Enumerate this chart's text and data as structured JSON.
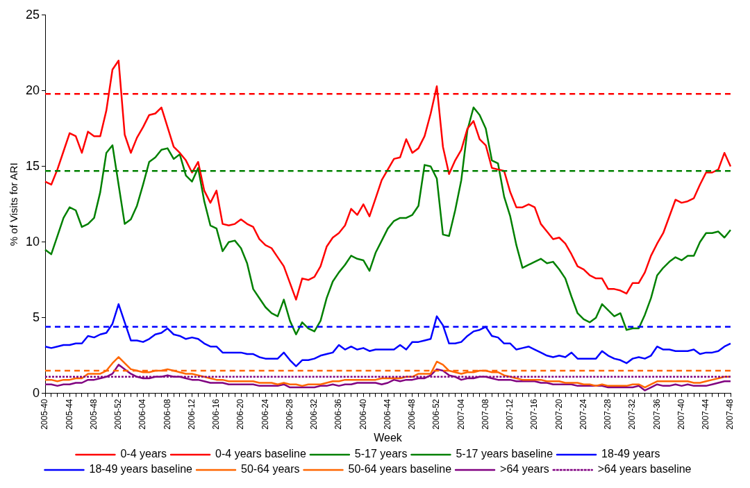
{
  "chart_data": {
    "type": "line",
    "xlabel": "Week",
    "ylabel": "% of Visits for ARI",
    "categories": [
      "2005-40",
      null,
      null,
      null,
      "2005-44",
      null,
      null,
      null,
      "2005-48",
      null,
      null,
      null,
      "2005-52",
      null,
      null,
      null,
      "2006-04",
      null,
      null,
      null,
      "2006-08",
      null,
      null,
      null,
      "2006-12",
      null,
      null,
      null,
      "2006-16",
      null,
      null,
      null,
      "2006-20",
      null,
      null,
      null,
      "2006-24",
      null,
      null,
      null,
      "2006-28",
      null,
      null,
      null,
      "2006-32",
      null,
      null,
      null,
      "2006-36",
      null,
      null,
      null,
      "2006-40",
      null,
      null,
      null,
      "2006-44",
      null,
      null,
      null,
      "2006-48",
      null,
      null,
      null,
      "2006-52",
      null,
      null,
      null,
      "2007-04",
      null,
      null,
      null,
      "2007-08",
      null,
      null,
      null,
      "2007-12",
      null,
      null,
      null,
      "2007-16",
      null,
      null,
      null,
      "2007-20",
      null,
      null,
      null,
      "2007-24",
      null,
      null,
      null,
      "2007-28",
      null,
      null,
      null,
      "2007-32",
      null,
      null,
      null,
      "2007-36",
      null,
      null,
      null,
      "2007-40",
      null,
      null,
      null,
      "2007-44",
      null,
      null,
      null,
      "2007-48"
    ],
    "ylim": [
      0,
      25
    ],
    "yticks": [
      0,
      5,
      10,
      15,
      20,
      25
    ],
    "grid": false,
    "legend": "bottom",
    "marker": "none",
    "series": [
      {
        "name": "0-4 years",
        "color": "#ff0000",
        "line_style": "solid",
        "values": [
          14.0,
          13.8,
          14.8,
          16.0,
          17.2,
          17.0,
          15.9,
          17.3,
          17.0,
          17.0,
          18.7,
          21.4,
          22.0,
          17.1,
          15.9,
          16.9,
          17.6,
          18.4,
          18.5,
          18.9,
          17.6,
          16.3,
          15.9,
          15.4,
          14.6,
          15.3,
          13.4,
          12.6,
          13.4,
          11.2,
          11.1,
          11.2,
          11.5,
          11.2,
          11.0,
          10.2,
          9.8,
          9.6,
          9.0,
          8.4,
          7.3,
          6.2,
          7.6,
          7.5,
          7.7,
          8.4,
          9.7,
          10.3,
          10.6,
          11.1,
          12.2,
          11.8,
          12.5,
          11.7,
          12.9,
          14.1,
          14.8,
          15.5,
          15.6,
          16.8,
          15.9,
          16.2,
          17.0,
          18.5,
          20.3,
          16.3,
          14.5,
          15.4,
          16.1,
          17.5,
          18.0,
          16.8,
          16.4,
          14.9,
          14.8,
          14.7,
          13.3,
          12.3,
          12.3,
          12.5,
          12.3,
          11.2,
          10.7,
          10.2,
          10.3,
          9.9,
          9.2,
          8.4,
          8.2,
          7.8,
          7.6,
          7.6,
          6.9,
          6.9,
          6.8,
          6.6,
          7.3,
          7.3,
          8.0,
          9.1,
          9.9,
          10.6,
          11.7,
          12.8,
          12.6,
          12.7,
          12.9,
          13.8,
          14.6,
          14.6,
          14.8,
          15.9,
          15.0
        ]
      },
      {
        "name": "0-4 years baseline",
        "color": "#ff0000",
        "line_style": "dashed",
        "values": [
          19.8,
          19.8,
          19.8,
          19.8,
          19.8,
          19.8,
          19.8,
          19.8,
          19.8,
          19.8,
          19.8,
          19.8,
          19.8,
          19.8,
          19.8,
          19.8,
          19.8,
          19.8,
          19.8,
          19.8,
          19.8,
          19.8,
          19.8,
          19.8,
          19.8,
          19.8,
          19.8,
          19.8,
          19.8,
          19.8,
          19.8,
          19.8,
          19.8,
          19.8,
          19.8,
          19.8,
          19.8,
          19.8,
          19.8,
          19.8,
          19.8,
          19.8,
          19.8,
          19.8,
          19.8,
          19.8,
          19.8,
          19.8,
          19.8,
          19.8,
          19.8,
          19.8,
          19.8,
          19.8,
          19.8,
          19.8,
          19.8,
          19.8,
          19.8,
          19.8,
          19.8,
          19.8,
          19.8,
          19.8,
          19.8,
          19.8,
          19.8,
          19.8,
          19.8,
          19.8,
          19.8,
          19.8,
          19.8,
          19.8,
          19.8,
          19.8,
          19.8,
          19.8,
          19.8,
          19.8,
          19.8,
          19.8,
          19.8,
          19.8,
          19.8,
          19.8,
          19.8,
          19.8,
          19.8,
          19.8,
          19.8,
          19.8,
          19.8,
          19.8,
          19.8,
          19.8,
          19.8,
          19.8,
          19.8,
          19.8,
          19.8,
          19.8,
          19.8,
          19.8,
          19.8,
          19.8,
          19.8,
          19.8,
          19.8,
          19.8,
          19.8,
          19.8,
          19.8
        ]
      },
      {
        "name": "5-17 years",
        "color": "#008000",
        "line_style": "solid",
        "values": [
          9.5,
          9.2,
          10.4,
          11.6,
          12.3,
          12.1,
          11.0,
          11.2,
          11.6,
          13.3,
          15.9,
          16.4,
          13.8,
          11.2,
          11.5,
          12.4,
          13.8,
          15.3,
          15.6,
          16.1,
          16.2,
          15.5,
          15.8,
          14.4,
          14.0,
          14.9,
          12.7,
          11.1,
          10.9,
          9.4,
          10.0,
          10.1,
          9.6,
          8.6,
          6.9,
          6.3,
          5.7,
          5.3,
          5.1,
          6.2,
          4.8,
          3.9,
          4.7,
          4.3,
          4.1,
          4.8,
          6.3,
          7.4,
          8.0,
          8.5,
          9.1,
          8.9,
          8.8,
          8.1,
          9.3,
          10.1,
          10.9,
          11.4,
          11.6,
          11.6,
          11.8,
          12.4,
          15.1,
          15.0,
          14.2,
          10.5,
          10.4,
          12.1,
          14.1,
          17.4,
          18.9,
          18.4,
          17.5,
          15.4,
          15.2,
          13.0,
          11.7,
          9.8,
          8.3,
          8.5,
          8.7,
          8.9,
          8.6,
          8.7,
          8.2,
          7.6,
          6.4,
          5.3,
          4.9,
          4.7,
          5.0,
          5.9,
          5.5,
          5.1,
          5.3,
          4.2,
          4.3,
          4.3,
          5.2,
          6.3,
          7.8,
          8.3,
          8.7,
          9.0,
          8.8,
          9.1,
          9.1,
          10.0,
          10.6,
          10.6,
          10.7,
          10.3,
          10.8
        ]
      },
      {
        "name": "5-17 years baseline",
        "color": "#008000",
        "line_style": "dashed",
        "values": [
          14.7,
          14.7,
          14.7,
          14.7,
          14.7,
          14.7,
          14.7,
          14.7,
          14.7,
          14.7,
          14.7,
          14.7,
          14.7,
          14.7,
          14.7,
          14.7,
          14.7,
          14.7,
          14.7,
          14.7,
          14.7,
          14.7,
          14.7,
          14.7,
          14.7,
          14.7,
          14.7,
          14.7,
          14.7,
          14.7,
          14.7,
          14.7,
          14.7,
          14.7,
          14.7,
          14.7,
          14.7,
          14.7,
          14.7,
          14.7,
          14.7,
          14.7,
          14.7,
          14.7,
          14.7,
          14.7,
          14.7,
          14.7,
          14.7,
          14.7,
          14.7,
          14.7,
          14.7,
          14.7,
          14.7,
          14.7,
          14.7,
          14.7,
          14.7,
          14.7,
          14.7,
          14.7,
          14.7,
          14.7,
          14.7,
          14.7,
          14.7,
          14.7,
          14.7,
          14.7,
          14.7,
          14.7,
          14.7,
          14.7,
          14.7,
          14.7,
          14.7,
          14.7,
          14.7,
          14.7,
          14.7,
          14.7,
          14.7,
          14.7,
          14.7,
          14.7,
          14.7,
          14.7,
          14.7,
          14.7,
          14.7,
          14.7,
          14.7,
          14.7,
          14.7,
          14.7,
          14.7,
          14.7,
          14.7,
          14.7,
          14.7,
          14.7,
          14.7,
          14.7,
          14.7,
          14.7,
          14.7,
          14.7,
          14.7,
          14.7,
          14.7,
          14.7,
          14.7
        ]
      },
      {
        "name": "18-49 years",
        "color": "#0000ff",
        "line_style": "solid",
        "values": [
          3.1,
          3.0,
          3.1,
          3.2,
          3.2,
          3.3,
          3.3,
          3.8,
          3.7,
          3.9,
          4.0,
          4.6,
          5.9,
          4.7,
          3.5,
          3.5,
          3.4,
          3.6,
          3.9,
          4.0,
          4.3,
          3.9,
          3.8,
          3.6,
          3.7,
          3.6,
          3.3,
          3.1,
          3.1,
          2.7,
          2.7,
          2.7,
          2.7,
          2.6,
          2.6,
          2.4,
          2.3,
          2.3,
          2.3,
          2.7,
          2.2,
          1.8,
          2.2,
          2.2,
          2.3,
          2.5,
          2.6,
          2.7,
          3.2,
          2.9,
          3.1,
          2.9,
          3.0,
          2.8,
          2.9,
          2.9,
          2.9,
          2.9,
          3.2,
          2.9,
          3.4,
          3.4,
          3.5,
          3.6,
          5.1,
          4.5,
          3.3,
          3.3,
          3.4,
          3.8,
          4.1,
          4.2,
          4.4,
          3.8,
          3.7,
          3.3,
          3.3,
          2.9,
          3.0,
          3.1,
          2.9,
          2.7,
          2.5,
          2.4,
          2.5,
          2.4,
          2.7,
          2.3,
          2.3,
          2.3,
          2.3,
          2.8,
          2.5,
          2.3,
          2.2,
          2.0,
          2.3,
          2.4,
          2.3,
          2.5,
          3.1,
          2.9,
          2.9,
          2.8,
          2.8,
          2.8,
          2.9,
          2.6,
          2.7,
          2.7,
          2.8,
          3.1,
          3.3
        ]
      },
      {
        "name": "18-49 years baseline",
        "color": "#0000ff",
        "line_style": "dashed",
        "values": [
          4.4,
          4.4,
          4.4,
          4.4,
          4.4,
          4.4,
          4.4,
          4.4,
          4.4,
          4.4,
          4.4,
          4.4,
          4.4,
          4.4,
          4.4,
          4.4,
          4.4,
          4.4,
          4.4,
          4.4,
          4.4,
          4.4,
          4.4,
          4.4,
          4.4,
          4.4,
          4.4,
          4.4,
          4.4,
          4.4,
          4.4,
          4.4,
          4.4,
          4.4,
          4.4,
          4.4,
          4.4,
          4.4,
          4.4,
          4.4,
          4.4,
          4.4,
          4.4,
          4.4,
          4.4,
          4.4,
          4.4,
          4.4,
          4.4,
          4.4,
          4.4,
          4.4,
          4.4,
          4.4,
          4.4,
          4.4,
          4.4,
          4.4,
          4.4,
          4.4,
          4.4,
          4.4,
          4.4,
          4.4,
          4.4,
          4.4,
          4.4,
          4.4,
          4.4,
          4.4,
          4.4,
          4.4,
          4.4,
          4.4,
          4.4,
          4.4,
          4.4,
          4.4,
          4.4,
          4.4,
          4.4,
          4.4,
          4.4,
          4.4,
          4.4,
          4.4,
          4.4,
          4.4,
          4.4,
          4.4,
          4.4,
          4.4,
          4.4,
          4.4,
          4.4,
          4.4,
          4.4,
          4.4,
          4.4,
          4.4,
          4.4,
          4.4,
          4.4,
          4.4,
          4.4,
          4.4,
          4.4,
          4.4,
          4.4,
          4.4,
          4.4,
          4.4,
          4.4
        ]
      },
      {
        "name": "50-64 years",
        "color": "#ff6600",
        "line_style": "solid",
        "values": [
          0.9,
          0.9,
          0.8,
          0.9,
          0.9,
          1.0,
          1.0,
          1.3,
          1.3,
          1.3,
          1.5,
          2.0,
          2.4,
          2.0,
          1.6,
          1.5,
          1.4,
          1.4,
          1.5,
          1.5,
          1.6,
          1.5,
          1.4,
          1.3,
          1.3,
          1.2,
          1.1,
          1.0,
          0.9,
          0.9,
          0.8,
          0.8,
          0.8,
          0.8,
          0.8,
          0.7,
          0.7,
          0.7,
          0.6,
          0.7,
          0.6,
          0.6,
          0.5,
          0.6,
          0.6,
          0.6,
          0.7,
          0.8,
          0.8,
          0.9,
          0.9,
          0.9,
          0.9,
          0.9,
          0.9,
          1.0,
          1.0,
          1.0,
          1.0,
          1.1,
          1.1,
          1.3,
          1.3,
          1.3,
          2.1,
          1.9,
          1.5,
          1.4,
          1.3,
          1.4,
          1.4,
          1.5,
          1.5,
          1.4,
          1.4,
          1.2,
          1.1,
          1.0,
          0.9,
          0.9,
          0.9,
          0.9,
          0.8,
          0.8,
          0.8,
          0.7,
          0.7,
          0.7,
          0.6,
          0.6,
          0.5,
          0.6,
          0.5,
          0.5,
          0.5,
          0.5,
          0.6,
          0.6,
          0.4,
          0.6,
          0.8,
          0.8,
          0.8,
          0.8,
          0.8,
          0.8,
          0.7,
          0.7,
          0.8,
          0.9,
          1.0,
          1.1,
          1.1
        ]
      },
      {
        "name": "50-64 years baseline",
        "color": "#ff6600",
        "line_style": "dashed",
        "values": [
          1.5,
          1.5,
          1.5,
          1.5,
          1.5,
          1.5,
          1.5,
          1.5,
          1.5,
          1.5,
          1.5,
          1.5,
          1.5,
          1.5,
          1.5,
          1.5,
          1.5,
          1.5,
          1.5,
          1.5,
          1.5,
          1.5,
          1.5,
          1.5,
          1.5,
          1.5,
          1.5,
          1.5,
          1.5,
          1.5,
          1.5,
          1.5,
          1.5,
          1.5,
          1.5,
          1.5,
          1.5,
          1.5,
          1.5,
          1.5,
          1.5,
          1.5,
          1.5,
          1.5,
          1.5,
          1.5,
          1.5,
          1.5,
          1.5,
          1.5,
          1.5,
          1.5,
          1.5,
          1.5,
          1.5,
          1.5,
          1.5,
          1.5,
          1.5,
          1.5,
          1.5,
          1.5,
          1.5,
          1.5,
          1.5,
          1.5,
          1.5,
          1.5,
          1.5,
          1.5,
          1.5,
          1.5,
          1.5,
          1.5,
          1.5,
          1.5,
          1.5,
          1.5,
          1.5,
          1.5,
          1.5,
          1.5,
          1.5,
          1.5,
          1.5,
          1.5,
          1.5,
          1.5,
          1.5,
          1.5,
          1.5,
          1.5,
          1.5,
          1.5,
          1.5,
          1.5,
          1.5,
          1.5,
          1.5,
          1.5,
          1.5,
          1.5,
          1.5,
          1.5,
          1.5,
          1.5,
          1.5,
          1.5,
          1.5,
          1.5,
          1.5,
          1.5,
          1.5
        ]
      },
      {
        "name": ">64 years",
        "color": "#800080",
        "line_style": "solid",
        "values": [
          0.6,
          0.6,
          0.5,
          0.6,
          0.6,
          0.7,
          0.7,
          0.9,
          0.9,
          1.0,
          1.1,
          1.3,
          1.9,
          1.6,
          1.3,
          1.1,
          1.0,
          1.0,
          1.1,
          1.1,
          1.2,
          1.1,
          1.1,
          1.0,
          0.9,
          0.9,
          0.8,
          0.7,
          0.7,
          0.7,
          0.6,
          0.6,
          0.6,
          0.6,
          0.6,
          0.5,
          0.5,
          0.5,
          0.5,
          0.6,
          0.4,
          0.4,
          0.4,
          0.4,
          0.4,
          0.5,
          0.5,
          0.6,
          0.5,
          0.6,
          0.6,
          0.7,
          0.7,
          0.7,
          0.7,
          0.6,
          0.7,
          0.9,
          0.8,
          0.9,
          0.9,
          1.0,
          1.0,
          1.2,
          1.6,
          1.5,
          1.2,
          1.1,
          0.9,
          1.0,
          1.0,
          1.1,
          1.1,
          1.0,
          0.9,
          0.9,
          0.9,
          0.8,
          0.8,
          0.8,
          0.8,
          0.7,
          0.7,
          0.6,
          0.6,
          0.6,
          0.6,
          0.5,
          0.5,
          0.5,
          0.5,
          0.5,
          0.4,
          0.4,
          0.4,
          0.4,
          0.4,
          0.5,
          0.2,
          0.4,
          0.6,
          0.5,
          0.5,
          0.6,
          0.5,
          0.6,
          0.5,
          0.5,
          0.5,
          0.6,
          0.7,
          0.8,
          0.8
        ]
      },
      {
        "name": ">64 years baseline",
        "color": "#800080",
        "line_style": "dotted",
        "values": [
          1.1,
          1.1,
          1.1,
          1.1,
          1.1,
          1.1,
          1.1,
          1.1,
          1.1,
          1.1,
          1.1,
          1.1,
          1.1,
          1.1,
          1.1,
          1.1,
          1.1,
          1.1,
          1.1,
          1.1,
          1.1,
          1.1,
          1.1,
          1.1,
          1.1,
          1.1,
          1.1,
          1.1,
          1.1,
          1.1,
          1.1,
          1.1,
          1.1,
          1.1,
          1.1,
          1.1,
          1.1,
          1.1,
          1.1,
          1.1,
          1.1,
          1.1,
          1.1,
          1.1,
          1.1,
          1.1,
          1.1,
          1.1,
          1.1,
          1.1,
          1.1,
          1.1,
          1.1,
          1.1,
          1.1,
          1.1,
          1.1,
          1.1,
          1.1,
          1.1,
          1.1,
          1.1,
          1.1,
          1.1,
          1.1,
          1.1,
          1.1,
          1.1,
          1.1,
          1.1,
          1.1,
          1.1,
          1.1,
          1.1,
          1.1,
          1.1,
          1.1,
          1.1,
          1.1,
          1.1,
          1.1,
          1.1,
          1.1,
          1.1,
          1.1,
          1.1,
          1.1,
          1.1,
          1.1,
          1.1,
          1.1,
          1.1,
          1.1,
          1.1,
          1.1,
          1.1,
          1.1,
          1.1,
          1.1,
          1.1,
          1.1,
          1.1,
          1.1,
          1.1,
          1.1,
          1.1,
          1.1,
          1.1,
          1.1,
          1.1,
          1.1,
          1.1,
          1.1
        ]
      }
    ]
  }
}
